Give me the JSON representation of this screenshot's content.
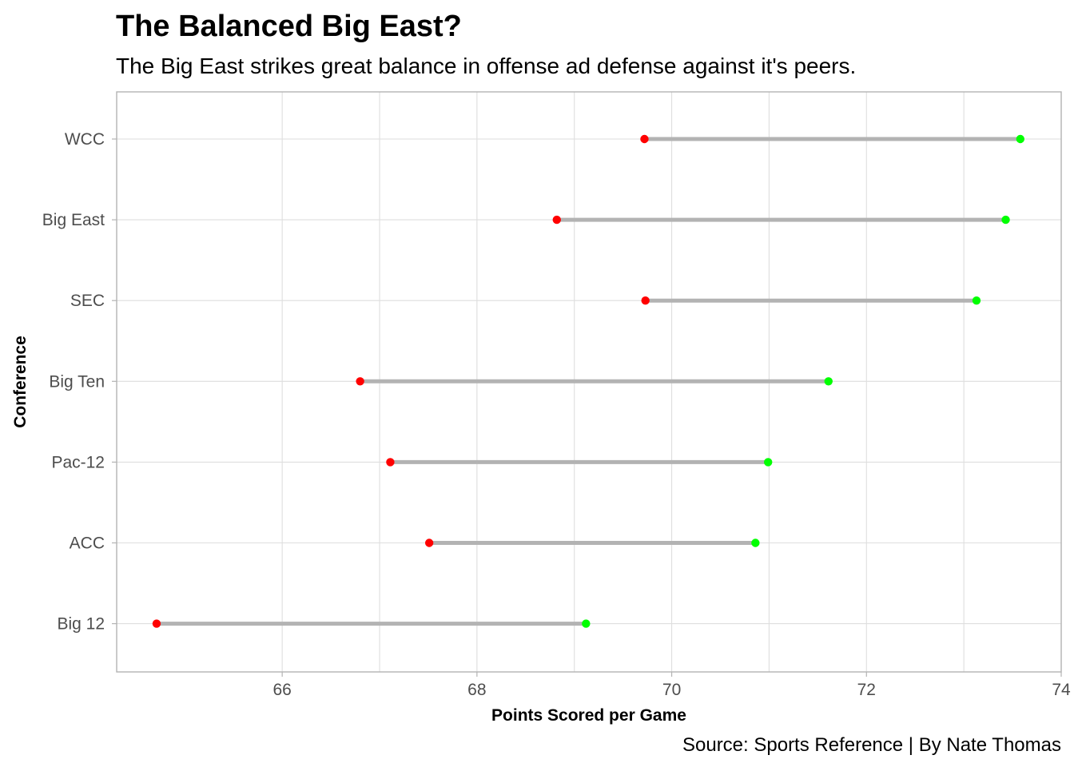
{
  "chart_data": {
    "type": "dumbbell",
    "title": "The Balanced Big East?",
    "subtitle": "The Big East strikes great balance in offense ad defense against it's peers.",
    "xlabel": "Points Scored per Game",
    "ylabel": "Conference",
    "caption": "Source: Sports Reference | By Nate Thomas",
    "xlim": [
      64.3,
      74.0
    ],
    "x_ticks": [
      66,
      68,
      70,
      72,
      74
    ],
    "x_tick_labels": [
      "66",
      "68",
      "70",
      "72",
      "74"
    ],
    "grid": true,
    "categories": [
      "WCC",
      "Big East",
      "SEC",
      "Big Ten",
      "Pac-12",
      "ACC",
      "Big 12"
    ],
    "series": [
      {
        "values": [
          69.72,
          68.82,
          69.73,
          66.8,
          67.11,
          67.51,
          64.71
        ],
        "color": "#ff0000"
      },
      {
        "values": [
          73.58,
          73.43,
          73.13,
          71.61,
          70.99,
          70.86,
          69.12
        ],
        "color": "#00ff00"
      }
    ],
    "segment_color": "#b3b3b3"
  }
}
